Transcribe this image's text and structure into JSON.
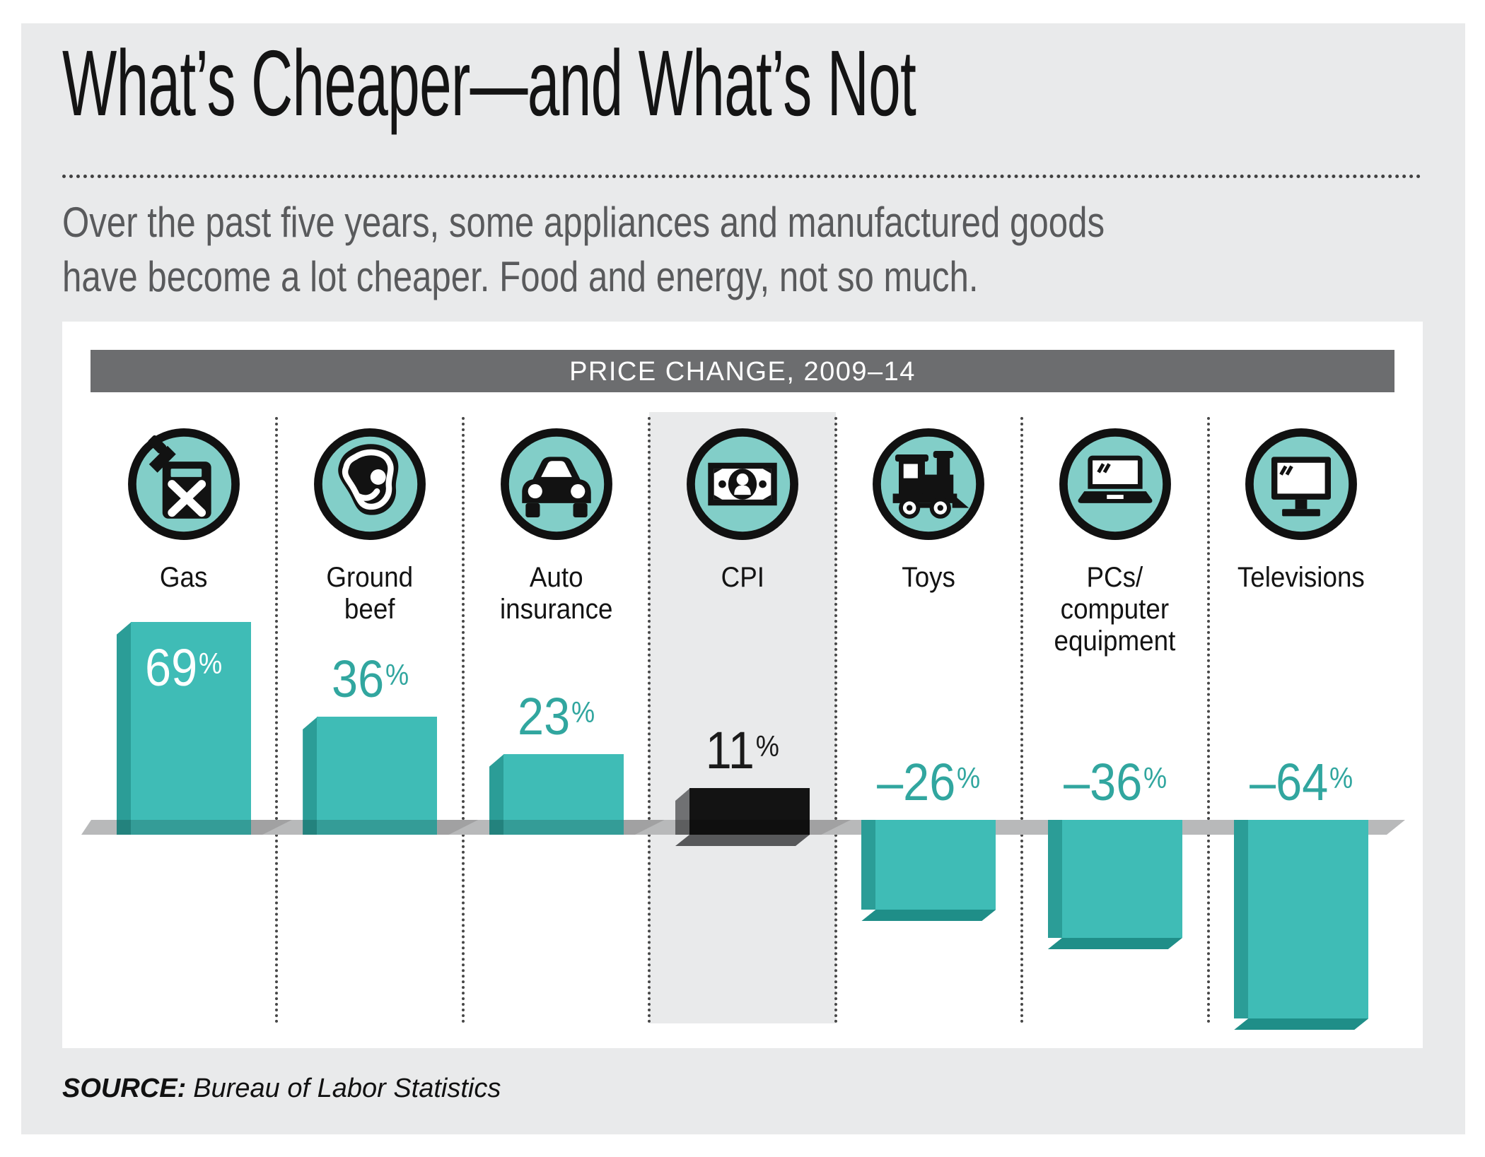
{
  "page": {
    "title": "What’s Cheaper—and What’s Not",
    "subtitle": "Over the past five years, some appliances and manufactured goods\nhave become a lot cheaper. Food and energy, not so much.",
    "source_label": "SOURCE:",
    "source_text": "Bureau of Labor Statistics"
  },
  "chart_data": {
    "type": "bar",
    "title": "PRICE CHANGE, 2009–14",
    "unit": "percent",
    "categories": [
      "Gas",
      "Ground\nbeef",
      "Auto\ninsurance",
      "CPI",
      "Toys",
      "PCs/\ncomputer\nequipment",
      "Televisions"
    ],
    "values": [
      69,
      36,
      23,
      11,
      -26,
      -36,
      -64
    ],
    "value_labels": [
      "69%",
      "36%",
      "23%",
      "11%",
      "–26%",
      "–36%",
      "–64%"
    ],
    "icons": [
      "gas-can-icon",
      "steak-icon",
      "car-icon",
      "money-icon",
      "toy-train-icon",
      "laptop-icon",
      "tv-icon"
    ],
    "highlight_category": "CPI",
    "value_label_styles": [
      {
        "pos": "inside",
        "color": "#ffffff"
      },
      {
        "pos": "above",
        "color": "#31a69f"
      },
      {
        "pos": "above",
        "color": "#31a69f"
      },
      {
        "pos": "above",
        "color": "#1a1a1a"
      },
      {
        "pos": "above",
        "color": "#31a69f"
      },
      {
        "pos": "above",
        "color": "#31a69f"
      },
      {
        "pos": "above",
        "color": "#31a69f"
      }
    ],
    "colors": {
      "bar_teal": "#3fbcb6",
      "bar_teal_dark": "#2b9d97",
      "bar_teal_deep": "#1f8e88",
      "bar_black": "#131313",
      "cpi_side_gray": "#707173",
      "cpi_bottom_gray": "#57585a",
      "band_gray": "#b8b9ba",
      "band_shadow": "#a1a1a2",
      "icon_bg": "#82cec8",
      "icon_stroke": "#111111",
      "header_bg": "#6c6d6f",
      "highlight_bg": "#e9eaeb",
      "page_bg": "#e9eaeb"
    },
    "baseline": 0,
    "grid": false,
    "legend": false
  }
}
